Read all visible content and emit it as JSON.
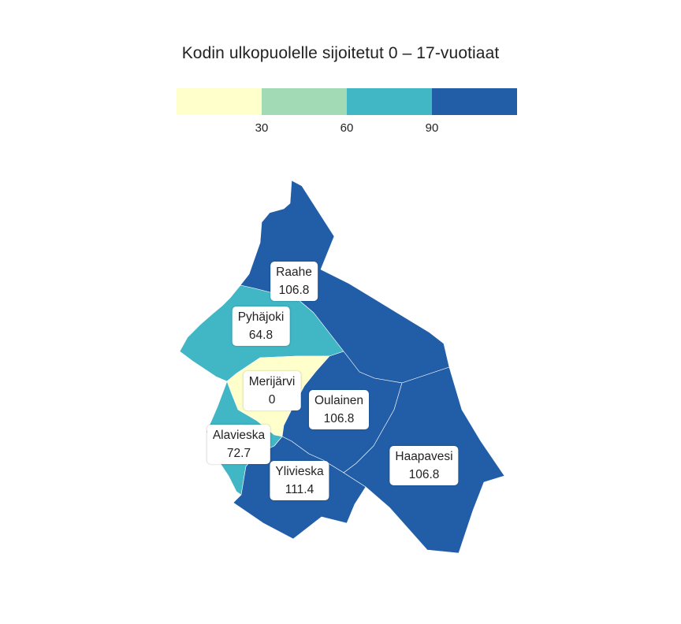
{
  "title": "Kodin ulkopuolelle sijoitetut 0 – 17-vuotiaat",
  "legend": {
    "colors": [
      "#ffffcc",
      "#a1dab4",
      "#41b6c4",
      "#225ea8"
    ],
    "ticks": [
      "30",
      "60",
      "90"
    ]
  },
  "municipalities": [
    {
      "name": "Raahe",
      "value": "106.8",
      "color": "#225ea8"
    },
    {
      "name": "Pyhäjoki",
      "value": "64.8",
      "color": "#41b6c4"
    },
    {
      "name": "Merijärvi",
      "value": "0",
      "color": "#ffffcc"
    },
    {
      "name": "Oulainen",
      "value": "106.8",
      "color": "#225ea8"
    },
    {
      "name": "Alavieska",
      "value": "72.7",
      "color": "#41b6c4"
    },
    {
      "name": "Ylivieska",
      "value": "111.4",
      "color": "#225ea8"
    },
    {
      "name": "Haapavesi",
      "value": "106.8",
      "color": "#225ea8"
    }
  ]
}
